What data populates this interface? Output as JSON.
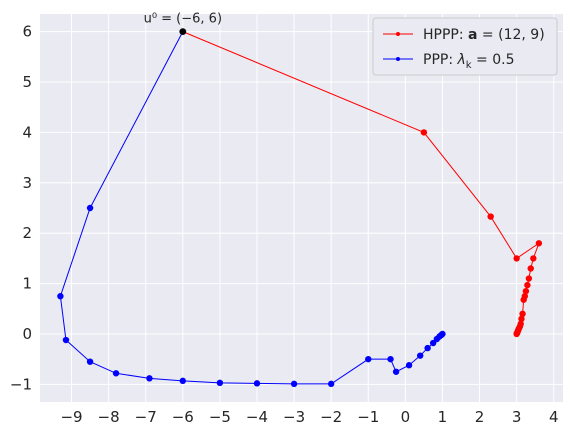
{
  "chart_data": {
    "type": "line",
    "title": "",
    "xlabel": "",
    "ylabel": "",
    "xlim": [
      -9.85,
      4.25
    ],
    "ylim": [
      -1.35,
      6.35
    ],
    "xticks": [
      -9,
      -8,
      -7,
      -6,
      -5,
      -4,
      -3,
      -2,
      -1,
      0,
      1,
      2,
      3,
      4
    ],
    "yticks": [
      -1,
      0,
      1,
      2,
      3,
      4,
      5,
      6
    ],
    "xtick_labels": [
      "−9",
      "−8",
      "−7",
      "−6",
      "−5",
      "−4",
      "−3",
      "−2",
      "−1",
      "0",
      "1",
      "2",
      "3",
      "4"
    ],
    "ytick_labels": [
      "−1",
      "0",
      "1",
      "2",
      "3",
      "4",
      "5",
      "6"
    ],
    "grid": true,
    "background": "#eaeaf2",
    "legend_position": "top-right",
    "start_point": {
      "x": -6,
      "y": 6,
      "color": "#000000"
    },
    "annotation": {
      "text": "u⁰ = (−6, 6)",
      "x": -6,
      "y": 6
    },
    "series": [
      {
        "name": "HPPP: a = (12, 9)",
        "legend": {
          "prefix": "HPPP: ",
          "bold": "a",
          "suffix": " = (12, 9)"
        },
        "color": "#ff0000",
        "x": [
          -6,
          0.5,
          2.3,
          3.0,
          3.6,
          3.45,
          3.38,
          3.33,
          3.29,
          3.25,
          3.22,
          3.19,
          3.16,
          3.13,
          3.11,
          3.09,
          3.07,
          3.05,
          3.04,
          3.03,
          3.02,
          3.01,
          3.005,
          3.0
        ],
        "y": [
          6,
          4,
          2.33,
          1.5,
          1.8,
          1.5,
          1.3,
          1.1,
          0.97,
          0.85,
          0.75,
          0.68,
          0.4,
          0.3,
          0.2,
          0.15,
          0.12,
          0.09,
          0.07,
          0.05,
          0.03,
          0.02,
          0.01,
          0.0
        ]
      },
      {
        "name": "PPP: λk = 0.5",
        "legend": {
          "prefix": "PPP: ",
          "italic": "λ",
          "sub": "k",
          "suffix": " = 0.5"
        },
        "color": "#0000ff",
        "x": [
          -6,
          -8.5,
          -9.3,
          -9.15,
          -8.5,
          -7.8,
          -6.9,
          -6.0,
          -5.0,
          -4.0,
          -3.0,
          -2.0,
          -1.0,
          -0.4,
          -0.25,
          0.1,
          0.4,
          0.6,
          0.75,
          0.85,
          0.92,
          0.97,
          1.0
        ],
        "y": [
          6,
          2.5,
          0.75,
          -0.12,
          -0.55,
          -0.78,
          -0.88,
          -0.93,
          -0.97,
          -0.98,
          -0.99,
          -0.99,
          -0.5,
          -0.5,
          -0.75,
          -0.62,
          -0.43,
          -0.28,
          -0.18,
          -0.1,
          -0.05,
          -0.02,
          0.0
        ]
      }
    ]
  }
}
